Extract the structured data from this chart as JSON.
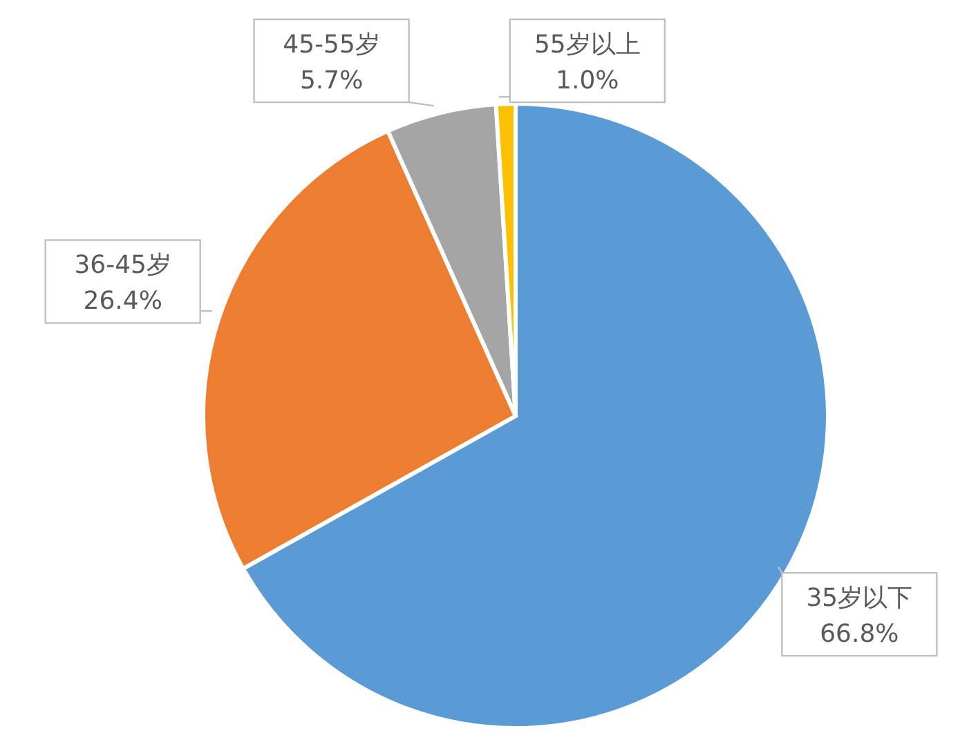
{
  "chart_data": {
    "type": "pie",
    "categories": [
      "35岁以下",
      "36-45岁",
      "45-55岁",
      "55岁以上"
    ],
    "values": [
      66.8,
      26.4,
      5.7,
      1.0
    ],
    "colors": [
      "#5b9bd5",
      "#ed7d31",
      "#a5a5a5",
      "#ffc000"
    ],
    "value_labels": [
      "66.8%",
      "26.4%",
      "5.7%",
      "1.0%"
    ]
  }
}
